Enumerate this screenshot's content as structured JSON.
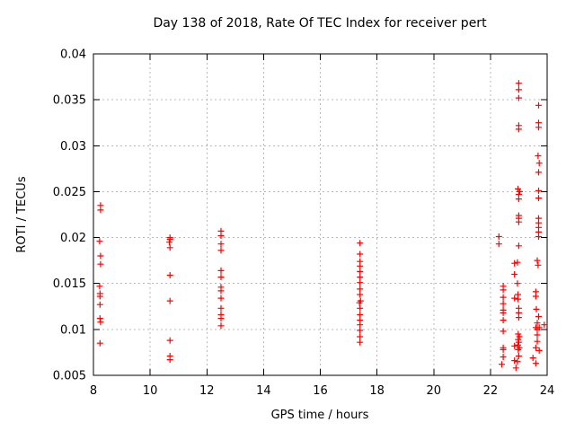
{
  "background": "#ffffff",
  "chart_data": {
    "type": "scatter",
    "title": "Day 138 of 2018, Rate Of TEC Index for receiver pert",
    "xlabel": "GPS time / hours",
    "ylabel": "ROTI / TECUs",
    "xlim": [
      8,
      24
    ],
    "ylim": [
      0.005,
      0.04
    ],
    "xticks": [
      8,
      10,
      12,
      14,
      16,
      18,
      20,
      22,
      24
    ],
    "yticks": [
      0.005,
      0.01,
      0.015,
      0.02,
      0.025,
      0.03,
      0.035,
      0.04
    ],
    "xtick_labels": [
      "8",
      "10",
      "12",
      "14",
      "16",
      "18",
      "20",
      "22",
      "24"
    ],
    "ytick_labels": [
      "0.005",
      "0.01",
      "0.015",
      "0.02",
      "0.025",
      "0.03",
      "0.035",
      "0.04"
    ],
    "grid": true,
    "legend": "none",
    "marker": "plus",
    "marker_color": "#ff0000",
    "points": [
      [
        8.25,
        0.0235
      ],
      [
        8.25,
        0.023
      ],
      [
        8.22,
        0.0196
      ],
      [
        8.25,
        0.018
      ],
      [
        8.25,
        0.0171
      ],
      [
        8.22,
        0.0147
      ],
      [
        8.23,
        0.0139
      ],
      [
        8.23,
        0.0136
      ],
      [
        8.23,
        0.0127
      ],
      [
        8.23,
        0.0112
      ],
      [
        8.25,
        0.0108
      ],
      [
        8.23,
        0.0085
      ],
      [
        10.7,
        0.02
      ],
      [
        10.7,
        0.0198
      ],
      [
        10.68,
        0.0195
      ],
      [
        10.7,
        0.0189
      ],
      [
        10.7,
        0.0159
      ],
      [
        10.7,
        0.0131
      ],
      [
        10.7,
        0.0088
      ],
      [
        10.7,
        0.0071
      ],
      [
        10.7,
        0.0067
      ],
      [
        12.5,
        0.0207
      ],
      [
        12.5,
        0.0202
      ],
      [
        12.5,
        0.0193
      ],
      [
        12.5,
        0.0186
      ],
      [
        12.5,
        0.0164
      ],
      [
        12.5,
        0.0157
      ],
      [
        12.5,
        0.0146
      ],
      [
        12.5,
        0.0142
      ],
      [
        12.5,
        0.0134
      ],
      [
        12.5,
        0.0123
      ],
      [
        12.5,
        0.0116
      ],
      [
        12.5,
        0.0112
      ],
      [
        12.5,
        0.0104
      ],
      [
        17.4,
        0.0194
      ],
      [
        17.4,
        0.0182
      ],
      [
        17.4,
        0.0174
      ],
      [
        17.4,
        0.0169
      ],
      [
        17.4,
        0.0163
      ],
      [
        17.4,
        0.0157
      ],
      [
        17.4,
        0.0151
      ],
      [
        17.4,
        0.0144
      ],
      [
        17.4,
        0.0138
      ],
      [
        17.42,
        0.0131
      ],
      [
        17.38,
        0.0129
      ],
      [
        17.4,
        0.0123
      ],
      [
        17.4,
        0.0116
      ],
      [
        17.4,
        0.011
      ],
      [
        17.4,
        0.0105
      ],
      [
        17.4,
        0.0099
      ],
      [
        17.4,
        0.0092
      ],
      [
        17.4,
        0.0086
      ],
      [
        22.3,
        0.0201
      ],
      [
        22.3,
        0.0193
      ],
      [
        22.45,
        0.0147
      ],
      [
        22.45,
        0.0143
      ],
      [
        22.45,
        0.0135
      ],
      [
        22.45,
        0.0128
      ],
      [
        22.45,
        0.0121
      ],
      [
        22.45,
        0.0118
      ],
      [
        22.45,
        0.011
      ],
      [
        22.45,
        0.0098
      ],
      [
        22.45,
        0.008
      ],
      [
        22.45,
        0.0078
      ],
      [
        22.45,
        0.007
      ],
      [
        22.4,
        0.0062
      ],
      [
        22.85,
        0.0172
      ],
      [
        22.85,
        0.016
      ],
      [
        22.85,
        0.0134
      ],
      [
        22.85,
        0.0082
      ],
      [
        22.85,
        0.0066
      ],
      [
        23,
        0.0368
      ],
      [
        23,
        0.0361
      ],
      [
        23,
        0.0352
      ],
      [
        23,
        0.0322
      ],
      [
        23,
        0.0318
      ],
      [
        22.97,
        0.0253
      ],
      [
        23.03,
        0.025
      ],
      [
        23,
        0.0247
      ],
      [
        23,
        0.0242
      ],
      [
        23,
        0.0224
      ],
      [
        23,
        0.0221
      ],
      [
        23,
        0.0217
      ],
      [
        23,
        0.0191
      ],
      [
        22.95,
        0.0173
      ],
      [
        22.95,
        0.015
      ],
      [
        22.97,
        0.0138
      ],
      [
        22.97,
        0.0133
      ],
      [
        23,
        0.0123
      ],
      [
        23,
        0.0118
      ],
      [
        23,
        0.0113
      ],
      [
        22.98,
        0.0095
      ],
      [
        23.02,
        0.0092
      ],
      [
        22.98,
        0.0089
      ],
      [
        23,
        0.0086
      ],
      [
        22.97,
        0.0083
      ],
      [
        23.02,
        0.008
      ],
      [
        22.98,
        0.0078
      ],
      [
        23,
        0.0071
      ],
      [
        22.95,
        0.0065
      ],
      [
        22.9,
        0.0058
      ],
      [
        23.7,
        0.0344
      ],
      [
        23.7,
        0.0325
      ],
      [
        23.7,
        0.032
      ],
      [
        23.68,
        0.0289
      ],
      [
        23.72,
        0.0281
      ],
      [
        23.7,
        0.0271
      ],
      [
        23.7,
        0.0251
      ],
      [
        23.7,
        0.0243
      ],
      [
        23.7,
        0.0221
      ],
      [
        23.7,
        0.0216
      ],
      [
        23.7,
        0.0211
      ],
      [
        23.7,
        0.0206
      ],
      [
        23.7,
        0.0201
      ],
      [
        23.65,
        0.0175
      ],
      [
        23.68,
        0.017
      ],
      [
        23.6,
        0.0141
      ],
      [
        23.6,
        0.0136
      ],
      [
        23.62,
        0.0122
      ],
      [
        23.7,
        0.0114
      ],
      [
        23.65,
        0.0107
      ],
      [
        23.6,
        0.0102
      ],
      [
        23.72,
        0.0102
      ],
      [
        23.65,
        0.01
      ],
      [
        23.65,
        0.0094
      ],
      [
        23.65,
        0.0087
      ],
      [
        23.6,
        0.008
      ],
      [
        23.72,
        0.0077
      ],
      [
        23.5,
        0.0069
      ],
      [
        23.6,
        0.0063
      ],
      [
        23.9,
        0.0105
      ]
    ]
  }
}
